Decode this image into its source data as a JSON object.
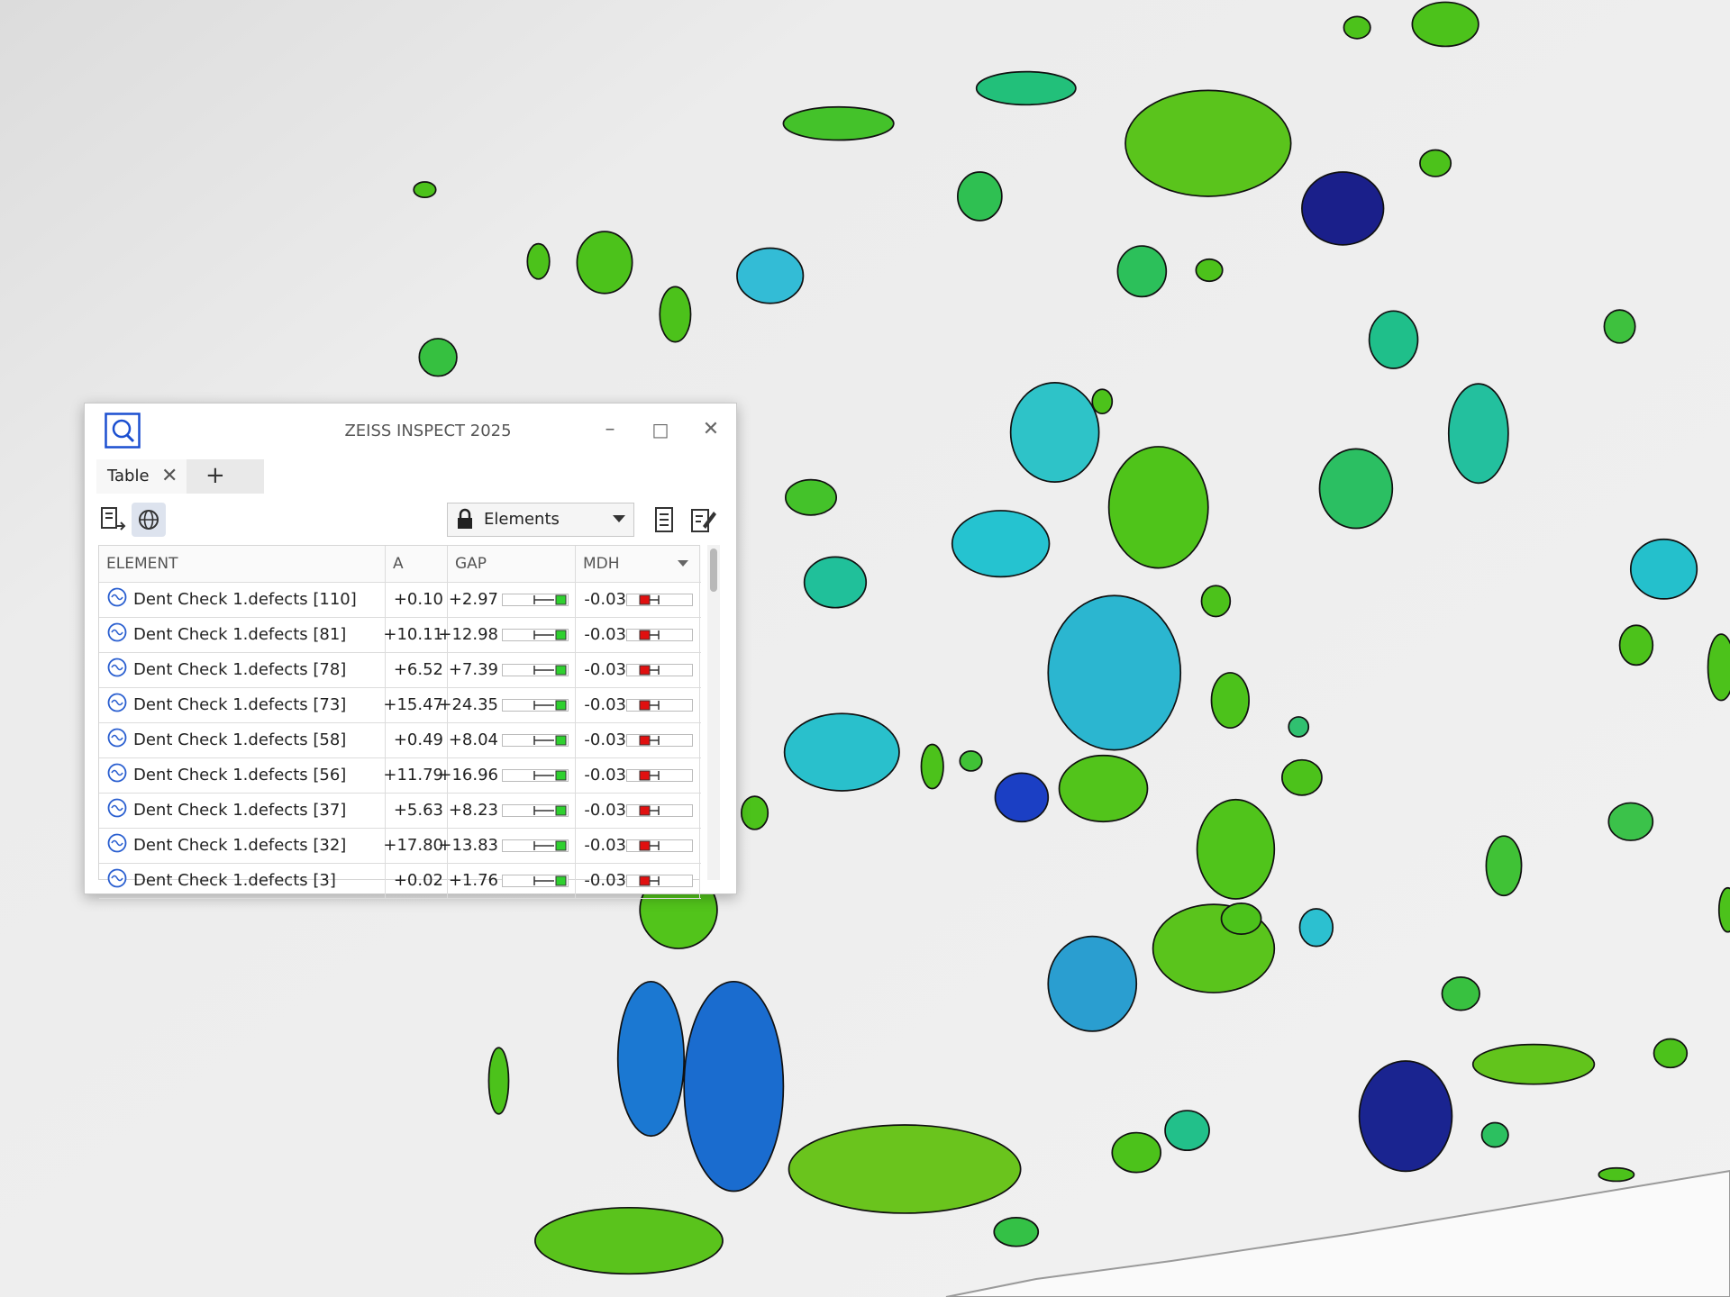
{
  "window": {
    "title": "ZEISS INSPECT 2025",
    "tab": "Table",
    "dropdown": "Elements"
  },
  "table": {
    "headers": [
      "ELEMENT",
      "A",
      "GAP",
      "MDH"
    ],
    "rows": [
      [
        "Dent Check 1.defects [110]",
        "+0.10",
        "+2.97",
        "-0.03"
      ],
      [
        "Dent Check 1.defects [81]",
        "+10.11",
        "+12.98",
        "-0.03"
      ],
      [
        "Dent Check 1.defects [78]",
        "+6.52",
        "+7.39",
        "-0.03"
      ],
      [
        "Dent Check 1.defects [73]",
        "+15.47",
        "+24.35",
        "-0.03"
      ],
      [
        "Dent Check 1.defects [58]",
        "+0.49",
        "+8.04",
        "-0.03"
      ],
      [
        "Dent Check 1.defects [56]",
        "+11.79",
        "+16.96",
        "-0.03"
      ],
      [
        "Dent Check 1.defects [37]",
        "+5.63",
        "+8.23",
        "-0.03"
      ],
      [
        "Dent Check 1.defects [32]",
        "+17.80",
        "+13.83",
        "-0.03"
      ],
      [
        "Dent Check 1.defects [3]",
        "+0.02",
        "+1.76",
        "-0.03"
      ]
    ]
  }
}
